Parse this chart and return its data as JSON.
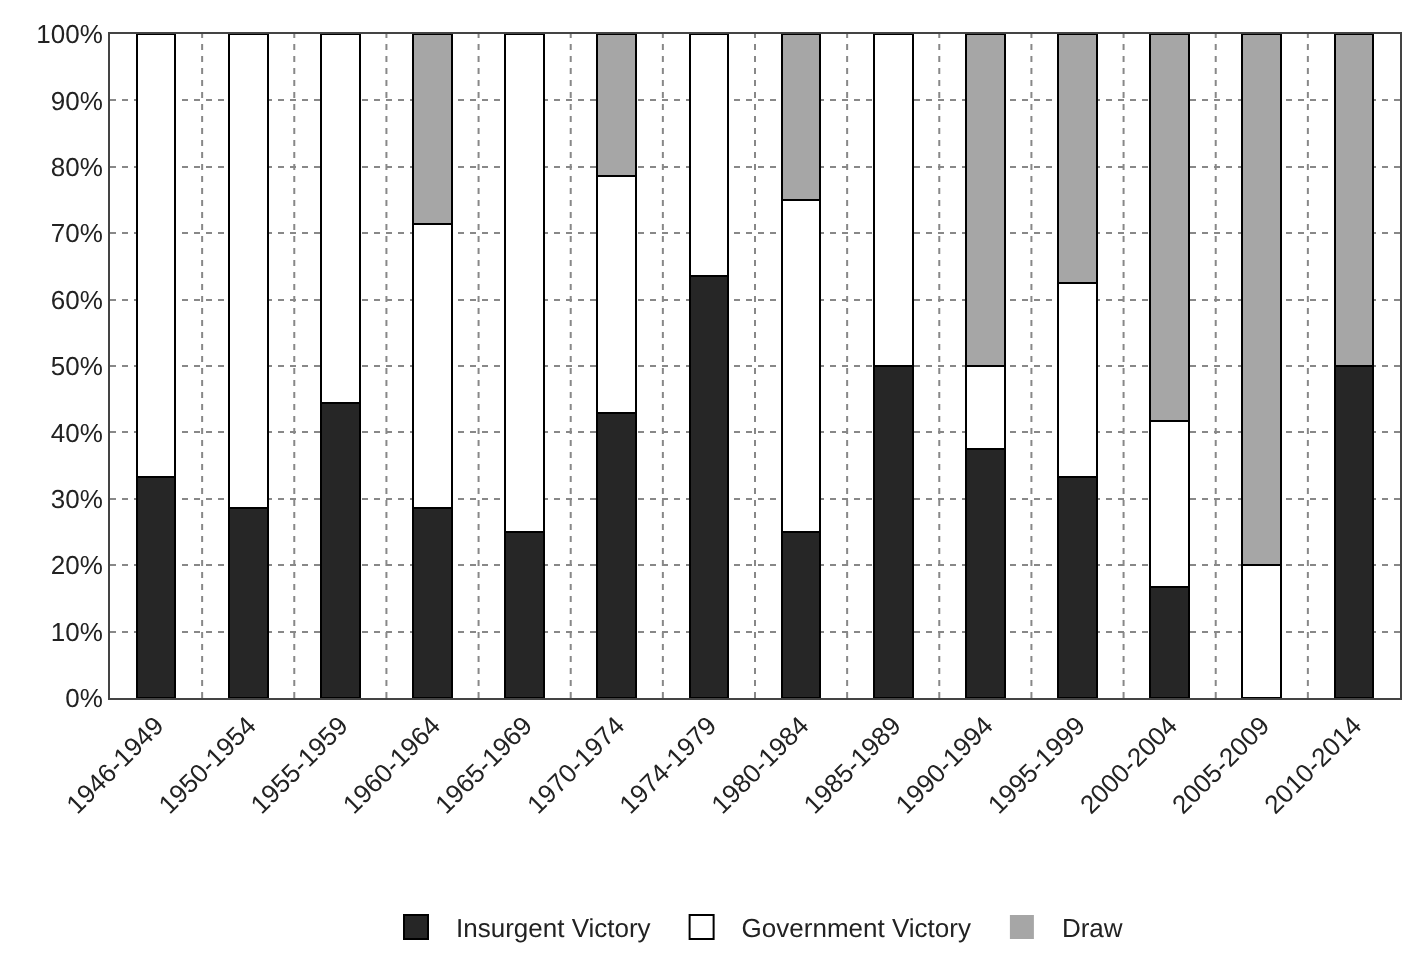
{
  "chart_data": {
    "type": "bar",
    "stacked": true,
    "categories": [
      "1946-1949",
      "1950-1954",
      "1955-1959",
      "1960-1964",
      "1965-1969",
      "1970-1974",
      "1974-1979",
      "1980-1984",
      "1985-1989",
      "1990-1994",
      "1995-1999",
      "2000-2004",
      "2005-2009",
      "2010-2014"
    ],
    "series": [
      {
        "name": "Insurgent Victory",
        "color": "#262626",
        "values": [
          33.3,
          28.6,
          44.4,
          28.6,
          25,
          42.9,
          63.6,
          25,
          50,
          37.5,
          33.3,
          16.7,
          0,
          50
        ]
      },
      {
        "name": "Government Victory",
        "color": "#ffffff",
        "values": [
          66.7,
          71.4,
          55.6,
          42.8,
          75,
          35.7,
          36.4,
          50,
          50,
          12.5,
          29.2,
          25,
          20,
          0
        ]
      },
      {
        "name": "Draw",
        "color": "#a6a6a6",
        "values": [
          0,
          0,
          0,
          28.6,
          0,
          21.4,
          0,
          25,
          0,
          50,
          37.5,
          58.3,
          80,
          50
        ]
      }
    ],
    "ylim": [
      0,
      100
    ],
    "yticks": [
      {
        "value": 0,
        "label": "0%"
      },
      {
        "value": 10,
        "label": "10%"
      },
      {
        "value": 20,
        "label": "20%"
      },
      {
        "value": 30,
        "label": "30%"
      },
      {
        "value": 40,
        "label": "40%"
      },
      {
        "value": 50,
        "label": "50%"
      },
      {
        "value": 60,
        "label": "60%"
      },
      {
        "value": 70,
        "label": "70%"
      },
      {
        "value": 80,
        "label": "80%"
      },
      {
        "value": 90,
        "label": "90%"
      },
      {
        "value": 100,
        "label": "100%"
      }
    ],
    "grid": true,
    "legend": "bottom"
  }
}
